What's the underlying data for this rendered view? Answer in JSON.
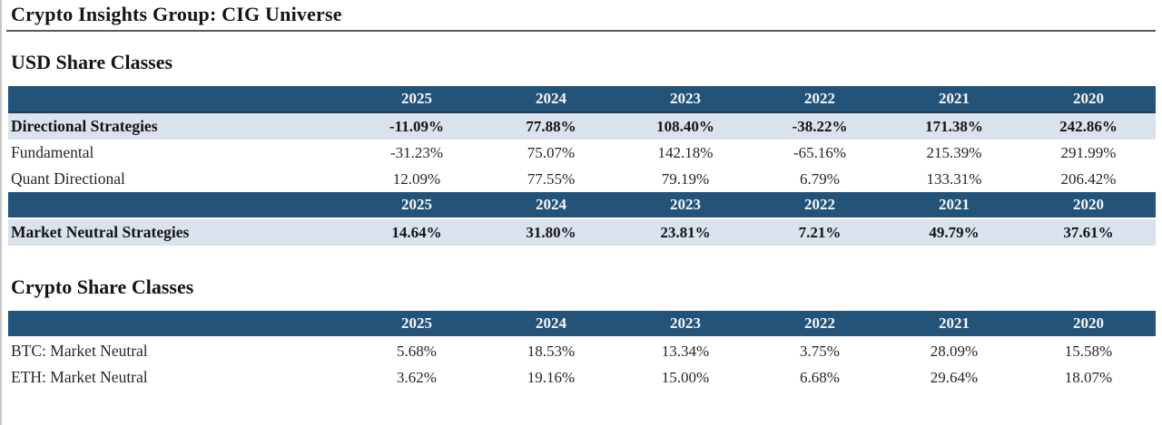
{
  "title": "Crypto Insights Group: CIG Universe",
  "years": [
    "2025",
    "2024",
    "2023",
    "2022",
    "2021",
    "2020"
  ],
  "colors": {
    "table_header_bg": "#245379",
    "highlight_row_bg": "#dae2ee",
    "header_text": "#ffffff",
    "body_text": "#1b1b1b"
  },
  "sections": {
    "usd": {
      "heading": "USD Share Classes",
      "blocks": [
        {
          "rows": [
            {
              "label": "Directional Strategies",
              "highlight": true,
              "values": [
                "-11.09%",
                "77.88%",
                "108.40%",
                "-38.22%",
                "171.38%",
                "242.86%"
              ]
            },
            {
              "label": "Fundamental",
              "highlight": false,
              "values": [
                "-31.23%",
                "75.07%",
                "142.18%",
                "-65.16%",
                "215.39%",
                "291.99%"
              ]
            },
            {
              "label": "Quant Directional",
              "highlight": false,
              "values": [
                "12.09%",
                "77.55%",
                "79.19%",
                "6.79%",
                "133.31%",
                "206.42%"
              ]
            }
          ]
        },
        {
          "rows": [
            {
              "label": "Market Neutral Strategies",
              "highlight": true,
              "values": [
                "14.64%",
                "31.80%",
                "23.81%",
                "7.21%",
                "49.79%",
                "37.61%"
              ]
            }
          ]
        }
      ]
    },
    "crypto": {
      "heading": "Crypto Share Classes",
      "blocks": [
        {
          "rows": [
            {
              "label": "BTC: Market Neutral",
              "highlight": false,
              "values": [
                "5.68%",
                "18.53%",
                "13.34%",
                "3.75%",
                "28.09%",
                "15.58%"
              ]
            },
            {
              "label": "ETH: Market Neutral",
              "highlight": false,
              "values": [
                "3.62%",
                "19.16%",
                "15.00%",
                "6.68%",
                "29.64%",
                "18.07%"
              ]
            }
          ]
        }
      ]
    }
  }
}
